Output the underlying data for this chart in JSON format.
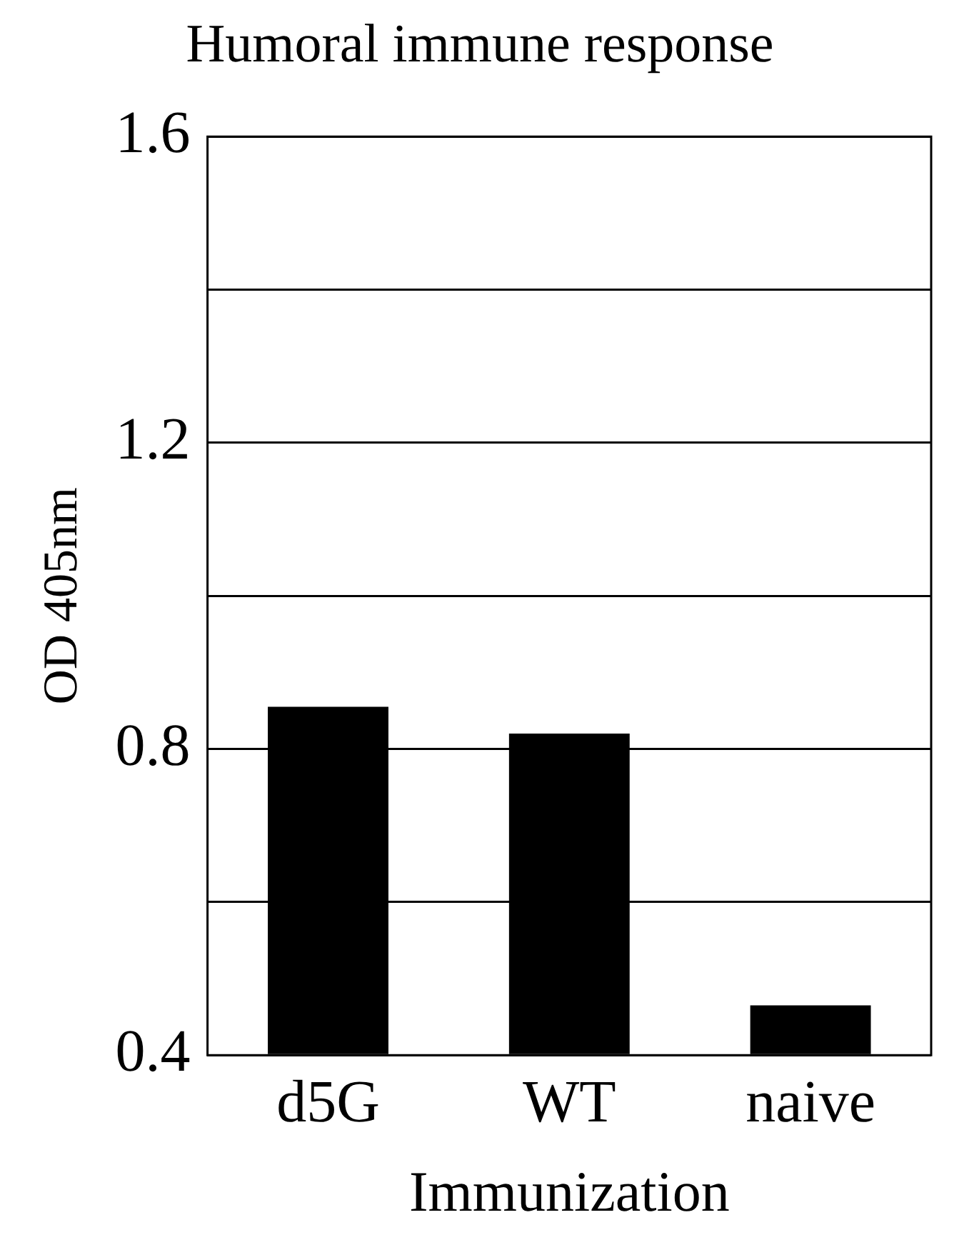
{
  "chart_data": {
    "type": "bar",
    "title": "Humoral immune response",
    "xlabel": "Immunization",
    "ylabel": "OD 405nm",
    "categories": [
      "d5G",
      "WT",
      "naive"
    ],
    "values": [
      0.855,
      0.82,
      0.465
    ],
    "color": "#000000",
    "ylim": [
      0.4,
      1.6
    ],
    "yticks": [
      0.4,
      {
        "value": 0.6,
        "label": null
      },
      0.8,
      {
        "value": 1.0,
        "label": null
      },
      1.2,
      {
        "value": 1.4,
        "label": null
      },
      1.6
    ],
    "grid": "y",
    "legend": false
  }
}
